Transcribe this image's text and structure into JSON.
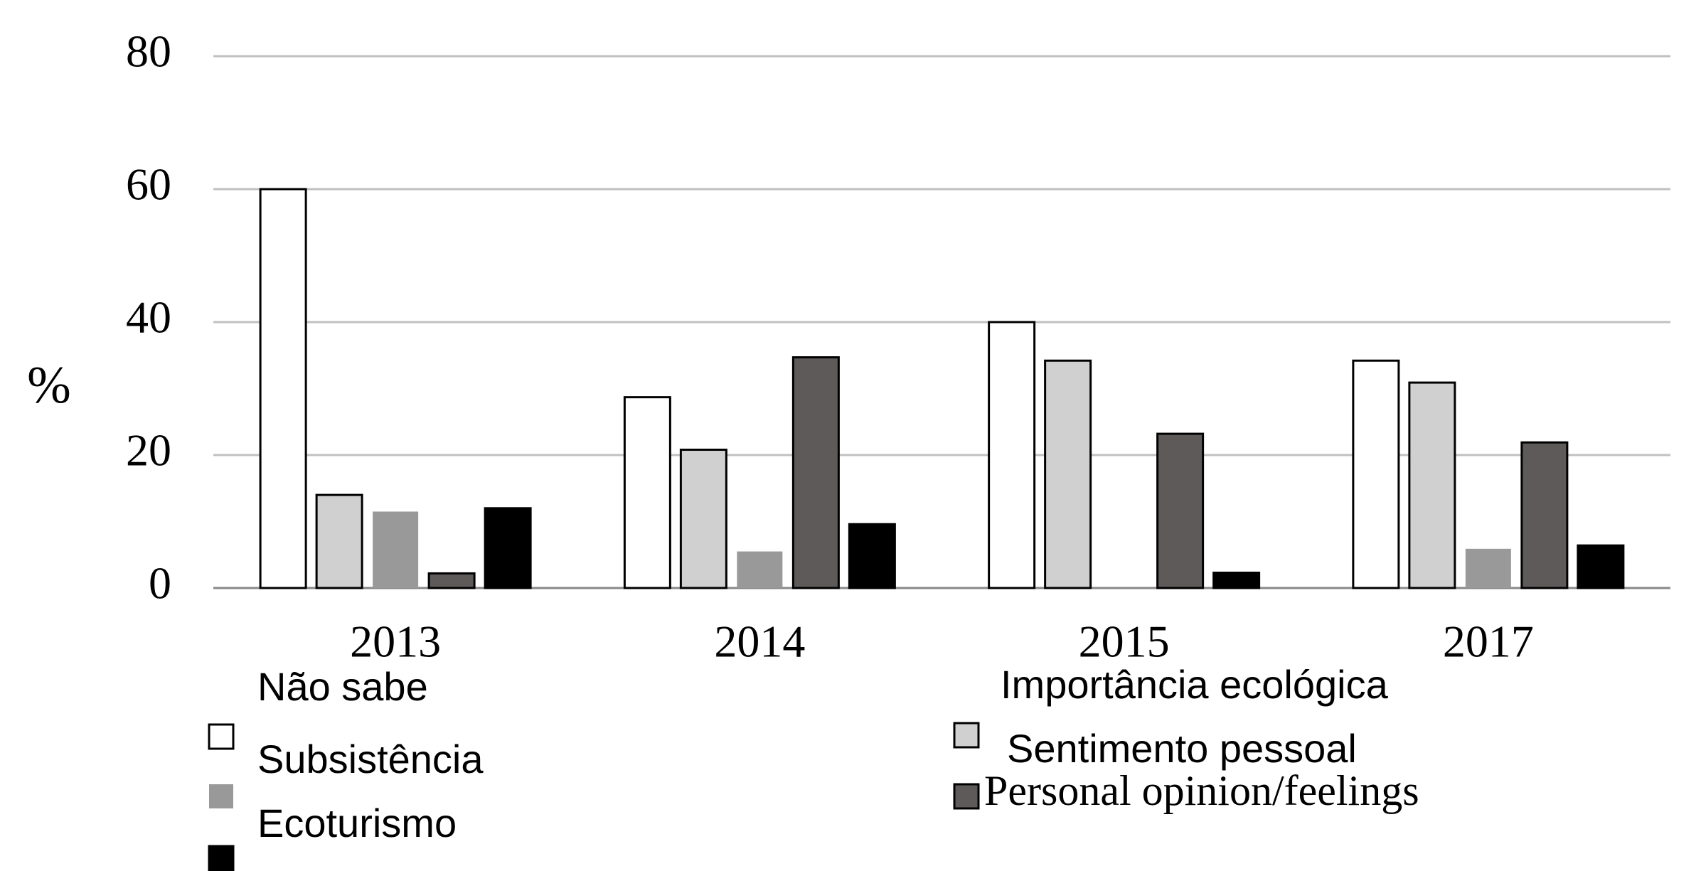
{
  "chart_data": {
    "type": "bar",
    "y_label": "%",
    "categories": [
      "2013",
      "2014",
      "2015",
      "2017"
    ],
    "series": [
      {
        "name": "Não sabe",
        "color": "#ffffff",
        "values": [
          60,
          28.7,
          40,
          34.2
        ]
      },
      {
        "name": "Importância ecológica",
        "color": "#d0d0d0",
        "values": [
          14,
          20.8,
          34.2,
          30.9
        ]
      },
      {
        "name": "Subsistência",
        "color": "#999999",
        "values": [
          11.5,
          5.5,
          0,
          5.9
        ]
      },
      {
        "name": "Sentimento pessoal",
        "color": "#5e5a5a",
        "values": [
          2.2,
          34.7,
          23.2,
          21.9
        ]
      },
      {
        "name": "Ecoturismo",
        "color": "#000000",
        "values": [
          12,
          9.6,
          2.3,
          6.4
        ]
      }
    ],
    "legend_original_text": "Personal opinion/feelings",
    "ylim": [
      0,
      80
    ],
    "yticks": [
      0,
      20,
      40,
      60,
      80
    ],
    "grid": true
  }
}
